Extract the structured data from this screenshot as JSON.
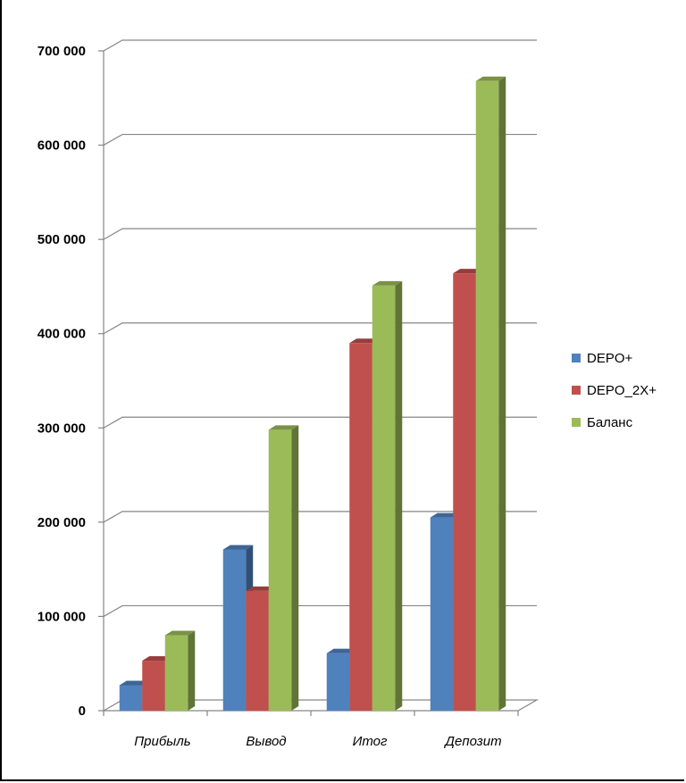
{
  "chart_data": {
    "type": "bar",
    "style": "3d-clustered-column",
    "categories": [
      "Прибыль",
      "Вывод",
      "Итог",
      "Депозит"
    ],
    "series": [
      {
        "name": "DEPO+",
        "color": "#4F81BD",
        "values": [
          27000,
          171000,
          61000,
          205000
        ]
      },
      {
        "name": "DEPO_2X+",
        "color": "#C0504D",
        "values": [
          53000,
          127000,
          390000,
          464000
        ]
      },
      {
        "name": "Баланс",
        "color": "#9BBB59",
        "values": [
          80000,
          298000,
          451000,
          668000
        ]
      }
    ],
    "yticks": [
      0,
      100000,
      200000,
      300000,
      400000,
      500000,
      600000,
      700000
    ],
    "ytick_labels": [
      "0",
      "100 000",
      "200 000",
      "300 000",
      "400 000",
      "500 000",
      "600 000",
      "700 000"
    ],
    "ylim": [
      0,
      700000
    ],
    "grid": true,
    "legend_position": "right"
  }
}
